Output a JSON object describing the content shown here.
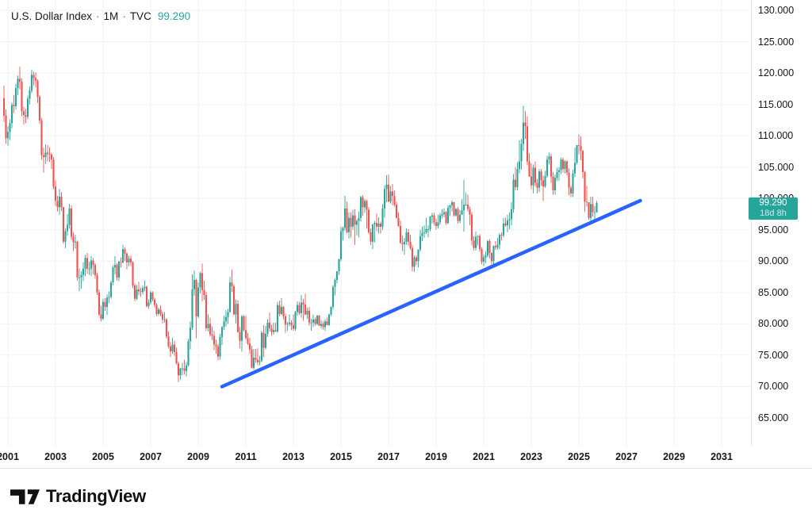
{
  "legend": {
    "symbol": "U.S. Dollar Index",
    "separator": "·",
    "interval": "1M",
    "exchange": "TVC",
    "last_value": "99.290"
  },
  "colors": {
    "up": "#26a69a",
    "down": "#ef5350",
    "trendline": "#2962ff",
    "grid": "#f0f2f5",
    "axis_border": "#e0e3eb",
    "text": "#131722",
    "badge_bg": "#26a69a",
    "legend_value": "#26a69a",
    "background": "#ffffff"
  },
  "price_scale": {
    "tick_values": [
      130,
      125,
      120,
      115,
      110,
      105,
      100,
      95,
      90,
      85,
      80,
      75,
      70,
      65
    ],
    "tick_labels": [
      "130.000",
      "125.000",
      "120.000",
      "115.000",
      "110.000",
      "105.000",
      "100.000",
      "95.000",
      "90.000",
      "85.000",
      "80.000",
      "75.000",
      "70.000",
      "65.000"
    ]
  },
  "time_scale": {
    "year_labels": [
      "2001",
      "2003",
      "2005",
      "2007",
      "2009",
      "2011",
      "2013",
      "2015",
      "2017",
      "2019",
      "2021",
      "2023",
      "2025",
      "2027",
      "2029",
      "2031"
    ],
    "year_values": [
      2001,
      2003,
      2005,
      2007,
      2009,
      2011,
      2013,
      2015,
      2017,
      2019,
      2021,
      2023,
      2025,
      2027,
      2029,
      2031
    ]
  },
  "price_badge": {
    "price_label": "99.290",
    "countdown": "18d 8h"
  },
  "footer": {
    "brand": "TradingView"
  },
  "chart_data": {
    "type": "candlestick",
    "title": "U.S. Dollar Index",
    "interval": "1M",
    "exchange": "TVC",
    "last_price": 99.29,
    "ylim_labeled": [
      65,
      130
    ],
    "years_labeled": [
      2001,
      2031
    ],
    "grid": true,
    "legend_position": "top-left",
    "start_month": "2000-11",
    "first_open": 116.0,
    "candles_hlc": [
      [
        118.0,
        112.2,
        113.2
      ],
      [
        114.2,
        108.7,
        109.6
      ],
      [
        111.5,
        108.4,
        110.6
      ],
      [
        112.6,
        109.3,
        112.0
      ],
      [
        115.3,
        111.2,
        114.9
      ],
      [
        116.5,
        113.6,
        114.7
      ],
      [
        118.3,
        114.2,
        117.6
      ],
      [
        119.6,
        116.5,
        119.1
      ],
      [
        121.0,
        117.4,
        118.6
      ],
      [
        119.2,
        113.1,
        113.9
      ],
      [
        114.6,
        111.8,
        113.3
      ],
      [
        114.3,
        112.0,
        113.0
      ],
      [
        116.4,
        112.6,
        115.9
      ],
      [
        117.9,
        115.0,
        117.2
      ],
      [
        120.5,
        116.8,
        119.7
      ],
      [
        120.2,
        118.0,
        119.2
      ],
      [
        120.1,
        117.7,
        118.8
      ],
      [
        119.0,
        115.2,
        116.2
      ],
      [
        116.5,
        111.9,
        112.4
      ],
      [
        112.8,
        106.2,
        106.9
      ],
      [
        108.1,
        104.1,
        106.6
      ],
      [
        108.6,
        105.5,
        107.3
      ],
      [
        108.5,
        105.9,
        107.1
      ],
      [
        108.2,
        105.8,
        107.0
      ],
      [
        107.3,
        104.7,
        106.2
      ],
      [
        106.6,
        101.5,
        101.9
      ],
      [
        102.9,
        98.8,
        99.6
      ],
      [
        100.4,
        97.9,
        98.6
      ],
      [
        101.5,
        97.4,
        100.3
      ],
      [
        101.0,
        98.0,
        98.6
      ],
      [
        98.7,
        92.8,
        93.1
      ],
      [
        95.2,
        92.1,
        94.8
      ],
      [
        97.5,
        94.1,
        95.8
      ],
      [
        99.1,
        95.2,
        98.4
      ],
      [
        98.9,
        93.4,
        93.9
      ],
      [
        94.6,
        91.6,
        93.0
      ],
      [
        94.2,
        92.0,
        93.1
      ],
      [
        93.3,
        86.9,
        87.4
      ],
      [
        88.8,
        85.2,
        87.4
      ],
      [
        88.4,
        85.6,
        87.8
      ],
      [
        89.8,
        86.8,
        88.8
      ],
      [
        91.0,
        87.6,
        90.5
      ],
      [
        91.3,
        88.0,
        88.8
      ],
      [
        89.9,
        87.8,
        88.8
      ],
      [
        90.8,
        87.6,
        90.1
      ],
      [
        90.5,
        87.9,
        89.4
      ],
      [
        89.7,
        87.2,
        87.8
      ],
      [
        88.2,
        84.6,
        85.0
      ],
      [
        85.5,
        81.3,
        81.5
      ],
      [
        82.9,
        80.4,
        80.8
      ],
      [
        84.0,
        80.6,
        83.5
      ],
      [
        84.1,
        82.1,
        82.7
      ],
      [
        84.7,
        81.4,
        84.2
      ],
      [
        85.2,
        83.3,
        84.3
      ],
      [
        86.9,
        84.0,
        86.6
      ],
      [
        89.3,
        86.2,
        89.0
      ],
      [
        90.8,
        87.9,
        89.4
      ],
      [
        89.7,
        86.9,
        87.4
      ],
      [
        90.1,
        86.8,
        89.9
      ],
      [
        90.6,
        89.0,
        89.8
      ],
      [
        92.6,
        89.6,
        91.9
      ],
      [
        92.2,
        90.0,
        91.2
      ],
      [
        91.4,
        88.7,
        89.8
      ],
      [
        90.9,
        89.2,
        90.4
      ],
      [
        90.9,
        89.2,
        89.8
      ],
      [
        90.0,
        85.7,
        86.1
      ],
      [
        86.4,
        83.6,
        84.0
      ],
      [
        86.2,
        83.8,
        85.5
      ],
      [
        86.7,
        84.6,
        85.2
      ],
      [
        85.8,
        84.3,
        85.1
      ],
      [
        86.1,
        84.7,
        85.7
      ],
      [
        86.9,
        85.2,
        85.9
      ],
      [
        86.1,
        82.6,
        82.8
      ],
      [
        83.9,
        82.4,
        83.4
      ],
      [
        85.3,
        83.1,
        85.0
      ],
      [
        85.2,
        83.6,
        83.9
      ],
      [
        84.2,
        82.6,
        83.0
      ],
      [
        83.3,
        81.2,
        81.6
      ],
      [
        82.6,
        81.3,
        82.3
      ],
      [
        83.0,
        81.2,
        81.6
      ],
      [
        82.0,
        80.1,
        80.7
      ],
      [
        81.9,
        80.2,
        80.7
      ],
      [
        80.9,
        77.7,
        78.0
      ],
      [
        78.8,
        76.1,
        76.4
      ],
      [
        77.1,
        74.7,
        75.6
      ],
      [
        77.8,
        75.2,
        76.7
      ],
      [
        77.3,
        74.9,
        75.5
      ],
      [
        76.2,
        73.5,
        73.7
      ],
      [
        74.0,
        70.7,
        71.8
      ],
      [
        73.0,
        71.1,
        72.9
      ],
      [
        73.8,
        71.8,
        72.9
      ],
      [
        74.3,
        71.9,
        72.5
      ],
      [
        73.9,
        71.6,
        73.4
      ],
      [
        77.6,
        73.2,
        77.2
      ],
      [
        80.4,
        75.9,
        79.4
      ],
      [
        87.9,
        79.0,
        85.5
      ],
      [
        88.5,
        84.5,
        87.0
      ],
      [
        87.2,
        77.7,
        81.2
      ],
      [
        86.6,
        80.9,
        85.8
      ],
      [
        88.3,
        84.9,
        88.1
      ],
      [
        89.6,
        83.6,
        85.4
      ],
      [
        86.9,
        83.8,
        84.6
      ],
      [
        85.1,
        78.9,
        79.3
      ],
      [
        81.5,
        78.8,
        80.0
      ],
      [
        81.0,
        78.0,
        78.3
      ],
      [
        79.6,
        77.4,
        78.1
      ],
      [
        78.9,
        75.8,
        76.7
      ],
      [
        77.5,
        75.2,
        76.4
      ],
      [
        76.8,
        74.2,
        74.8
      ],
      [
        78.4,
        74.3,
        77.9
      ],
      [
        79.6,
        76.6,
        79.5
      ],
      [
        81.3,
        79.0,
        80.4
      ],
      [
        82.2,
        79.6,
        81.1
      ],
      [
        82.4,
        80.0,
        81.9
      ],
      [
        87.5,
        81.8,
        86.6
      ],
      [
        88.7,
        85.1,
        86.0
      ],
      [
        86.3,
        81.4,
        81.5
      ],
      [
        83.9,
        80.1,
        83.2
      ],
      [
        83.8,
        78.6,
        78.7
      ],
      [
        79.5,
        76.1,
        77.3
      ],
      [
        81.4,
        75.6,
        81.2
      ],
      [
        81.4,
        78.8,
        79.0
      ],
      [
        81.3,
        77.5,
        77.7
      ],
      [
        78.6,
        76.6,
        76.9
      ],
      [
        77.8,
        75.2,
        75.9
      ],
      [
        76.5,
        72.9,
        73.0
      ],
      [
        76.0,
        72.7,
        74.6
      ],
      [
        76.0,
        73.8,
        74.3
      ],
      [
        76.1,
        73.4,
        73.9
      ],
      [
        74.9,
        73.4,
        74.1
      ],
      [
        78.9,
        73.9,
        78.6
      ],
      [
        79.8,
        74.7,
        76.2
      ],
      [
        79.7,
        75.9,
        78.4
      ],
      [
        80.7,
        77.9,
        80.2
      ],
      [
        81.8,
        78.8,
        79.3
      ],
      [
        79.9,
        78.1,
        78.7
      ],
      [
        80.2,
        78.3,
        79.0
      ],
      [
        80.2,
        78.7,
        78.8
      ],
      [
        83.5,
        78.6,
        83.0
      ],
      [
        83.7,
        81.2,
        81.6
      ],
      [
        84.1,
        81.4,
        82.7
      ],
      [
        82.9,
        80.7,
        81.2
      ],
      [
        81.6,
        78.6,
        79.9
      ],
      [
        80.3,
        78.9,
        80.0
      ],
      [
        81.5,
        79.6,
        80.2
      ],
      [
        80.6,
        79.0,
        79.8
      ],
      [
        81.5,
        78.9,
        79.2
      ],
      [
        82.1,
        78.9,
        81.9
      ],
      [
        83.6,
        81.3,
        83.0
      ],
      [
        83.5,
        81.4,
        81.7
      ],
      [
        84.6,
        81.0,
        83.4
      ],
      [
        84.0,
        80.5,
        83.1
      ],
      [
        84.8,
        81.4,
        81.5
      ],
      [
        82.6,
        80.8,
        82.1
      ],
      [
        82.7,
        79.7,
        80.2
      ],
      [
        80.8,
        78.9,
        80.2
      ],
      [
        81.5,
        79.5,
        80.7
      ],
      [
        81.0,
        79.7,
        80.0
      ],
      [
        81.4,
        79.8,
        81.3
      ],
      [
        81.4,
        79.7,
        79.7
      ],
      [
        80.6,
        79.3,
        80.0
      ],
      [
        80.4,
        79.1,
        79.5
      ],
      [
        80.7,
        78.9,
        80.4
      ],
      [
        81.0,
        79.8,
        79.8
      ],
      [
        81.6,
        79.7,
        81.5
      ],
      [
        82.8,
        81.2,
        82.7
      ],
      [
        86.2,
        82.3,
        85.9
      ],
      [
        87.3,
        84.5,
        87.0
      ],
      [
        88.4,
        86.5,
        88.4
      ],
      [
        90.4,
        87.8,
        90.3
      ],
      [
        95.5,
        90.0,
        94.8
      ],
      [
        95.5,
        93.3,
        95.3
      ],
      [
        100.4,
        94.9,
        98.4
      ],
      [
        99.5,
        94.4,
        94.6
      ],
      [
        97.8,
        93.6,
        96.9
      ],
      [
        97.8,
        93.8,
        95.5
      ],
      [
        98.2,
        95.0,
        97.3
      ],
      [
        98.3,
        92.6,
        95.8
      ],
      [
        96.7,
        94.1,
        96.4
      ],
      [
        97.9,
        93.8,
        96.9
      ],
      [
        100.4,
        96.3,
        100.2
      ],
      [
        100.5,
        97.2,
        98.6
      ],
      [
        99.9,
        97.7,
        99.6
      ],
      [
        99.8,
        95.2,
        98.2
      ],
      [
        98.6,
        94.3,
        94.6
      ],
      [
        95.2,
        92.6,
        93.1
      ],
      [
        95.9,
        91.9,
        95.9
      ],
      [
        96.4,
        93.0,
        96.1
      ],
      [
        97.6,
        94.8,
        95.5
      ],
      [
        97.0,
        94.4,
        96.0
      ],
      [
        96.3,
        94.4,
        95.5
      ],
      [
        99.1,
        95.0,
        98.4
      ],
      [
        102.1,
        96.9,
        101.5
      ],
      [
        103.7,
        99.4,
        102.2
      ],
      [
        103.8,
        99.4,
        99.5
      ],
      [
        102.0,
        99.2,
        101.1
      ],
      [
        102.3,
        98.9,
        100.4
      ],
      [
        101.3,
        98.7,
        99.0
      ],
      [
        99.5,
        96.8,
        96.9
      ],
      [
        97.8,
        95.5,
        95.6
      ],
      [
        96.5,
        92.8,
        92.9
      ],
      [
        94.1,
        91.6,
        92.7
      ],
      [
        93.7,
        91.0,
        93.1
      ],
      [
        95.2,
        92.6,
        94.6
      ],
      [
        95.1,
        92.5,
        93.1
      ],
      [
        94.2,
        91.8,
        92.1
      ],
      [
        92.6,
        88.4,
        89.1
      ],
      [
        90.9,
        88.3,
        90.6
      ],
      [
        90.9,
        89.4,
        90.0
      ],
      [
        91.9,
        89.0,
        91.8
      ],
      [
        95.0,
        91.5,
        94.0
      ],
      [
        95.5,
        93.2,
        94.5
      ],
      [
        95.7,
        93.7,
        94.6
      ],
      [
        96.9,
        94.3,
        95.1
      ],
      [
        95.7,
        93.8,
        95.1
      ],
      [
        97.2,
        94.8,
        97.1
      ],
      [
        97.7,
        96.0,
        97.3
      ],
      [
        97.7,
        95.7,
        96.2
      ],
      [
        96.8,
        95.0,
        95.6
      ],
      [
        97.4,
        95.2,
        96.2
      ],
      [
        97.7,
        95.8,
        97.3
      ],
      [
        98.3,
        96.8,
        97.5
      ],
      [
        98.4,
        97.0,
        97.8
      ],
      [
        98.0,
        95.8,
        96.1
      ],
      [
        98.9,
        95.9,
        98.5
      ],
      [
        99.0,
        97.2,
        98.9
      ],
      [
        99.7,
        97.9,
        99.4
      ],
      [
        99.5,
        97.1,
        97.3
      ],
      [
        98.5,
        97.1,
        98.3
      ],
      [
        98.6,
        96.0,
        96.4
      ],
      [
        98.2,
        96.1,
        97.4
      ],
      [
        99.9,
        97.4,
        98.1
      ],
      [
        103.0,
        94.7,
        99.0
      ],
      [
        100.9,
        98.8,
        99.0
      ],
      [
        100.6,
        97.9,
        98.3
      ],
      [
        98.7,
        95.7,
        97.4
      ],
      [
        97.8,
        92.5,
        93.3
      ],
      [
        94.0,
        91.7,
        92.1
      ],
      [
        94.7,
        91.7,
        93.9
      ],
      [
        94.1,
        92.5,
        94.0
      ],
      [
        94.3,
        91.5,
        91.9
      ],
      [
        92.2,
        89.5,
        89.9
      ],
      [
        91.1,
        89.2,
        90.6
      ],
      [
        91.6,
        89.7,
        90.9
      ],
      [
        93.4,
        90.6,
        93.2
      ],
      [
        93.5,
        90.4,
        91.3
      ],
      [
        91.4,
        89.5,
        90.0
      ],
      [
        92.5,
        89.5,
        92.4
      ],
      [
        93.2,
        91.8,
        92.2
      ],
      [
        93.7,
        91.8,
        92.6
      ],
      [
        94.5,
        91.9,
        94.2
      ],
      [
        94.6,
        93.3,
        94.1
      ],
      [
        96.9,
        93.8,
        96.0
      ],
      [
        96.9,
        95.5,
        95.7
      ],
      [
        97.4,
        94.6,
        96.5
      ],
      [
        97.8,
        95.1,
        96.7
      ],
      [
        99.4,
        95.7,
        98.3
      ],
      [
        103.9,
        97.7,
        103.0
      ],
      [
        105.0,
        101.3,
        101.8
      ],
      [
        105.8,
        101.3,
        104.7
      ],
      [
        109.3,
        104.0,
        105.9
      ],
      [
        109.5,
        104.6,
        108.7
      ],
      [
        114.8,
        107.6,
        112.1
      ],
      [
        113.9,
        109.5,
        111.5
      ],
      [
        113.1,
        105.3,
        105.9
      ],
      [
        107.2,
        103.4,
        103.5
      ],
      [
        105.6,
        101.5,
        102.1
      ],
      [
        105.4,
        100.8,
        104.9
      ],
      [
        105.9,
        101.9,
        102.5
      ],
      [
        103.1,
        100.8,
        101.7
      ],
      [
        104.7,
        101.0,
        104.3
      ],
      [
        104.7,
        102.0,
        102.9
      ],
      [
        103.6,
        99.6,
        101.9
      ],
      [
        104.4,
        101.7,
        103.6
      ],
      [
        106.8,
        103.3,
        106.2
      ],
      [
        107.3,
        105.4,
        106.7
      ],
      [
        107.1,
        102.5,
        103.5
      ],
      [
        104.2,
        100.6,
        101.3
      ],
      [
        103.8,
        100.6,
        103.3
      ],
      [
        104.9,
        102.8,
        104.2
      ],
      [
        105.0,
        102.8,
        104.5
      ],
      [
        106.5,
        103.9,
        106.2
      ],
      [
        106.5,
        104.1,
        104.7
      ],
      [
        106.1,
        104.0,
        105.9
      ],
      [
        106.1,
        103.7,
        104.1
      ],
      [
        104.8,
        100.5,
        101.7
      ],
      [
        102.0,
        100.2,
        100.8
      ],
      [
        104.6,
        100.2,
        104.0
      ],
      [
        108.1,
        103.4,
        105.7
      ],
      [
        108.5,
        105.4,
        108.5
      ],
      [
        110.2,
        107.0,
        108.4
      ],
      [
        109.9,
        106.1,
        107.6
      ],
      [
        107.7,
        103.2,
        104.2
      ],
      [
        104.4,
        97.9,
        99.5
      ],
      [
        102.0,
        98.7,
        99.4
      ],
      [
        99.4,
        96.6,
        96.9
      ],
      [
        100.3,
        96.4,
        99.1
      ],
      [
        100.3,
        97.1,
        97.8
      ],
      [
        98.8,
        96.2,
        97.8
      ],
      [
        99.6,
        97.7,
        99.29
      ]
    ],
    "trendline": {
      "type": "trend-line",
      "color": "#2962ff",
      "from": {
        "month_index": 110,
        "price": 70.0
      },
      "to": {
        "month_index": 321,
        "price": 99.65
      }
    }
  }
}
